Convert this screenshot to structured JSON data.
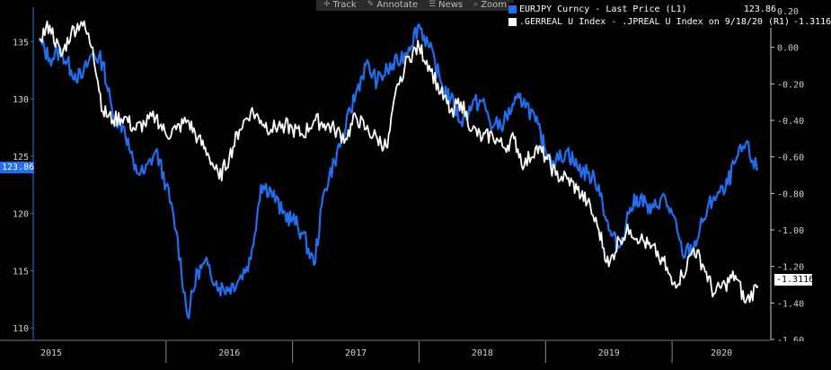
{
  "toolbar": {
    "items": [
      {
        "icon": "crosshair-icon",
        "label": "Track"
      },
      {
        "icon": "pencil-icon",
        "label": "Annotate"
      },
      {
        "icon": "news-icon",
        "label": "News"
      },
      {
        "icon": "magnifier-icon",
        "label": "Zoom"
      }
    ]
  },
  "legend": {
    "series": [
      {
        "label": "EURJPY Curncy - Last Price (L1)",
        "value": "123.86",
        "color": "#1f6ff0"
      },
      {
        "label": ".GERREAL U Index - .JPREAL U Index on 9/18/20 (R1)",
        "value": "-1.3116",
        "color": "#ffffff"
      }
    ]
  },
  "last_value_tags": {
    "left": "123.86",
    "right": "-1.3116"
  },
  "chart_data": {
    "type": "line",
    "x_axis": {
      "tick_labels": [
        "2015",
        "2016",
        "2017",
        "2018",
        "2019",
        "2020"
      ],
      "range": [
        "2015-01",
        "2020-09"
      ]
    },
    "y_left": {
      "ticks": [
        "110",
        "115",
        "120",
        "125",
        "130",
        "135"
      ],
      "range": [
        109,
        138
      ]
    },
    "y_right": {
      "ticks": [
        "-1.60",
        "-1.40",
        "-1.20",
        "-1.00",
        "-0.80",
        "-0.60",
        "-0.40",
        "-0.20",
        "0.00",
        "0.20"
      ],
      "range": [
        -1.6,
        0.22
      ]
    },
    "grid": false,
    "legend_position": "top-right",
    "series": [
      {
        "name": "EURJPY Curncy - Last Price (L1)",
        "axis": "left",
        "color": "#1f6ff0",
        "x": [
          2015.0,
          2015.08,
          2015.17,
          2015.25,
          2015.33,
          2015.42,
          2015.5,
          2015.58,
          2015.67,
          2015.75,
          2015.83,
          2015.92,
          2016.0,
          2016.08,
          2016.17,
          2016.25,
          2016.33,
          2016.42,
          2016.5,
          2016.58,
          2016.67,
          2016.75,
          2016.83,
          2016.92,
          2017.0,
          2017.08,
          2017.17,
          2017.25,
          2017.33,
          2017.42,
          2017.5,
          2017.58,
          2017.67,
          2017.75,
          2017.83,
          2017.92,
          2018.0,
          2018.08,
          2018.17,
          2018.25,
          2018.33,
          2018.42,
          2018.5,
          2018.58,
          2018.67,
          2018.75,
          2018.83,
          2018.92,
          2019.0,
          2019.08,
          2019.17,
          2019.25,
          2019.33,
          2019.42,
          2019.5,
          2019.58,
          2019.67,
          2019.75,
          2019.83,
          2019.92,
          2020.0,
          2020.08,
          2020.17,
          2020.25,
          2020.33,
          2020.42,
          2020.5,
          2020.58,
          2020.67
        ],
        "y": [
          135.0,
          133.5,
          134.2,
          132.5,
          131.8,
          134.0,
          133.2,
          128.5,
          127.5,
          123.8,
          123.5,
          125.5,
          122.5,
          118.5,
          111.0,
          115.0,
          115.5,
          113.5,
          113.5,
          114.3,
          116.0,
          122.5,
          122.0,
          120.0,
          119.5,
          118.2,
          115.5,
          122.0,
          124.5,
          127.5,
          130.5,
          133.0,
          131.5,
          132.5,
          133.2,
          134.5,
          136.5,
          134.5,
          131.5,
          130.0,
          128.0,
          129.5,
          129.8,
          127.5,
          128.0,
          129.5,
          130.0,
          128.0,
          125.5,
          124.5,
          125.5,
          124.0,
          123.5,
          122.5,
          118.5,
          117.0,
          120.5,
          121.5,
          120.0,
          121.5,
          120.0,
          116.5,
          117.0,
          119.5,
          121.5,
          122.0,
          124.5,
          126.0,
          123.86
        ]
      },
      {
        "name": ".GERREAL U Index - .JPREAL U Index on 9/18/20 (R1)",
        "axis": "right",
        "color": "#ffffff",
        "x": [
          2015.0,
          2015.08,
          2015.17,
          2015.25,
          2015.33,
          2015.42,
          2015.5,
          2015.58,
          2015.67,
          2015.75,
          2015.83,
          2015.92,
          2016.0,
          2016.08,
          2016.17,
          2016.25,
          2016.33,
          2016.42,
          2016.5,
          2016.58,
          2016.67,
          2016.75,
          2016.83,
          2016.92,
          2017.0,
          2017.08,
          2017.17,
          2017.25,
          2017.33,
          2017.42,
          2017.5,
          2017.58,
          2017.67,
          2017.75,
          2017.83,
          2017.92,
          2018.0,
          2018.08,
          2018.17,
          2018.25,
          2018.33,
          2018.42,
          2018.5,
          2018.58,
          2018.67,
          2018.75,
          2018.83,
          2018.92,
          2019.0,
          2019.08,
          2019.17,
          2019.25,
          2019.33,
          2019.42,
          2019.5,
          2019.58,
          2019.67,
          2019.75,
          2019.83,
          2019.92,
          2020.0,
          2020.08,
          2020.17,
          2020.25,
          2020.33,
          2020.42,
          2020.5,
          2020.58,
          2020.67
        ],
        "y": [
          0.05,
          0.12,
          -0.05,
          0.08,
          0.14,
          0.0,
          -0.35,
          -0.4,
          -0.38,
          -0.45,
          -0.42,
          -0.38,
          -0.48,
          -0.45,
          -0.4,
          -0.5,
          -0.58,
          -0.72,
          -0.6,
          -0.45,
          -0.35,
          -0.4,
          -0.45,
          -0.42,
          -0.45,
          -0.48,
          -0.4,
          -0.42,
          -0.45,
          -0.5,
          -0.38,
          -0.45,
          -0.5,
          -0.55,
          -0.2,
          -0.05,
          0.0,
          -0.1,
          -0.25,
          -0.35,
          -0.3,
          -0.45,
          -0.5,
          -0.48,
          -0.55,
          -0.5,
          -0.65,
          -0.55,
          -0.6,
          -0.7,
          -0.72,
          -0.78,
          -0.85,
          -1.0,
          -1.2,
          -1.05,
          -1.0,
          -1.05,
          -1.1,
          -1.15,
          -1.3,
          -1.25,
          -1.1,
          -1.2,
          -1.35,
          -1.3,
          -1.25,
          -1.4,
          -1.3116
        ]
      }
    ]
  }
}
